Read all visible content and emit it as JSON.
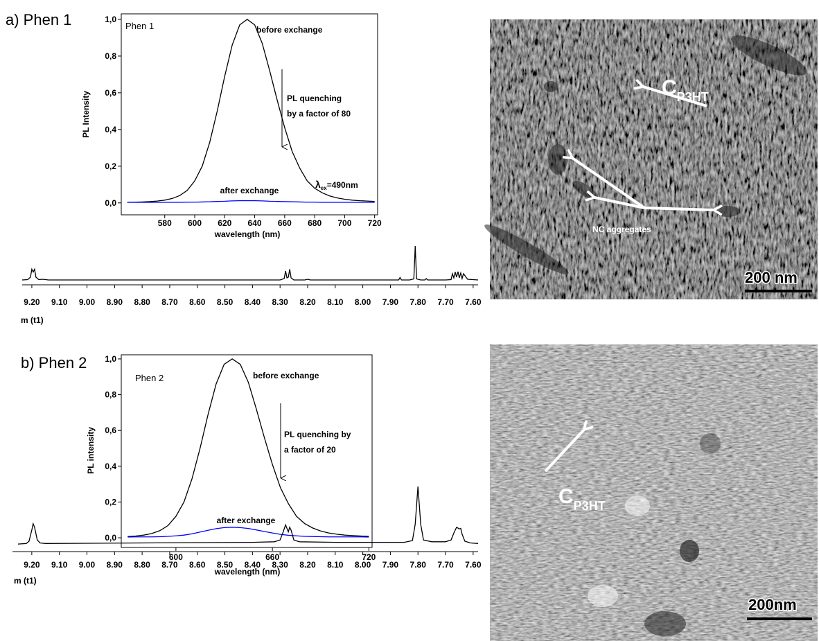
{
  "panels": [
    "a) Phen 1",
    "b) Phen 2"
  ],
  "chart_data": [
    {
      "type": "line",
      "inset_label": "Phen 1",
      "x_label": "wavelength (nm)",
      "y_label": "PL Intensity",
      "x": [
        555,
        560,
        565,
        570,
        575,
        580,
        585,
        590,
        595,
        600,
        605,
        610,
        615,
        620,
        625,
        630,
        635,
        640,
        645,
        650,
        655,
        660,
        665,
        670,
        675,
        680,
        685,
        690,
        695,
        700,
        705,
        710,
        715,
        720
      ],
      "series": [
        {
          "name": "before exchange",
          "color": "#000000",
          "values": [
            0.003,
            0.004,
            0.005,
            0.007,
            0.01,
            0.015,
            0.024,
            0.04,
            0.068,
            0.12,
            0.2,
            0.33,
            0.5,
            0.69,
            0.86,
            0.97,
            1.0,
            0.97,
            0.87,
            0.72,
            0.56,
            0.41,
            0.28,
            0.19,
            0.12,
            0.08,
            0.055,
            0.038,
            0.027,
            0.02,
            0.015,
            0.012,
            0.01,
            0.008
          ]
        },
        {
          "name": "after exchange",
          "color": "#0000ff",
          "values": [
            0.003,
            0.003,
            0.003,
            0.003,
            0.003,
            0.003,
            0.003,
            0.003,
            0.004,
            0.004,
            0.005,
            0.006,
            0.008,
            0.009,
            0.011,
            0.012,
            0.012,
            0.012,
            0.011,
            0.009,
            0.008,
            0.007,
            0.006,
            0.005,
            0.004,
            0.004,
            0.003,
            0.003,
            0.003,
            0.003,
            0.003,
            0.003,
            0.003,
            0.003
          ]
        }
      ],
      "xlim": [
        551,
        722
      ],
      "xticks": [
        580,
        600,
        620,
        640,
        660,
        680,
        700,
        720
      ],
      "ylim": [
        -0.065,
        1.03
      ],
      "yticks": [
        {
          "value": 0,
          "label": "0,0"
        },
        {
          "value": 0.2,
          "label": "0,2"
        },
        {
          "value": 0.4,
          "label": "0,4"
        },
        {
          "value": 0.6,
          "label": "0,6"
        },
        {
          "value": 0.8,
          "label": "0,8"
        },
        {
          "value": 1,
          "label": "1,0"
        }
      ],
      "annotations": [
        {
          "lines": [
            "PL quenching",
            "by a factor of 80"
          ]
        },
        {
          "text": "λ",
          "subscript": "ex",
          "suffix": "=490nm"
        }
      ]
    },
    {
      "type": "line",
      "x_label": "m (t1)",
      "x": [
        9.235,
        9.215,
        9.205,
        9.2,
        9.195,
        9.19,
        9.185,
        9.175,
        9.16,
        9.15,
        9.14,
        9.1,
        8.5,
        8.3,
        8.285,
        8.28,
        8.275,
        8.27,
        8.265,
        8.26,
        8.25,
        8.21,
        8.2,
        8.19,
        8.0,
        7.87,
        7.865,
        7.86,
        7.83,
        7.815,
        7.81,
        7.805,
        7.79,
        7.775,
        7.77,
        7.765,
        7.7,
        7.68,
        7.675,
        7.67,
        7.665,
        7.66,
        7.655,
        7.65,
        7.645,
        7.64,
        7.635,
        7.62,
        7.582
      ],
      "series": [
        {
          "color": "#000000",
          "values": [
            0.02,
            0.03,
            0.1,
            0.33,
            0.25,
            0.33,
            0.1,
            0.03,
            0.04,
            0.03,
            0.02,
            0.02,
            0.02,
            0.02,
            0.06,
            0.28,
            0.08,
            0.1,
            0.33,
            0.08,
            0.02,
            0.02,
            0.04,
            0.02,
            0.02,
            0.02,
            0.09,
            0.02,
            0.02,
            0.05,
            1.0,
            0.05,
            0.02,
            0.02,
            0.06,
            0.02,
            0.02,
            0.03,
            0.2,
            0.08,
            0.25,
            0.1,
            0.26,
            0.08,
            0.22,
            0.06,
            0.2,
            0.04,
            0.02
          ]
        }
      ],
      "xlim": [
        9.235,
        7.582
      ],
      "xticks": [
        {
          "value": 9.2,
          "label": "9.20"
        },
        {
          "value": 9.1,
          "label": "9.10"
        },
        {
          "value": 9.0,
          "label": "9.00"
        },
        {
          "value": 8.9,
          "label": "8.90"
        },
        {
          "value": 8.8,
          "label": "8.80"
        },
        {
          "value": 8.7,
          "label": "8.70"
        },
        {
          "value": 8.6,
          "label": "8.60"
        },
        {
          "value": 8.5,
          "label": "8.50"
        },
        {
          "value": 8.4,
          "label": "8.40"
        },
        {
          "value": 8.3,
          "label": "8.30"
        },
        {
          "value": 8.2,
          "label": "8.20"
        },
        {
          "value": 8.1,
          "label": "8.10"
        },
        {
          "value": 8.0,
          "label": "8.00"
        },
        {
          "value": 7.9,
          "label": "7.90"
        },
        {
          "value": 7.8,
          "label": "7.80"
        },
        {
          "value": 7.7,
          "label": "7.70"
        },
        {
          "value": 7.6,
          "label": "7.60"
        }
      ]
    },
    {
      "type": "line",
      "inset_label": "Phen 2",
      "x_label": "wavelength (nm)",
      "y_label": "PL intensity",
      "x": [
        570,
        575,
        580,
        585,
        590,
        595,
        600,
        605,
        610,
        615,
        620,
        625,
        630,
        635,
        640,
        645,
        650,
        655,
        660,
        665,
        670,
        675,
        680,
        685,
        690,
        695,
        700,
        705,
        710,
        715,
        720
      ],
      "series": [
        {
          "name": "before exchange",
          "color": "#000000",
          "values": [
            0.007,
            0.01,
            0.015,
            0.024,
            0.04,
            0.068,
            0.12,
            0.2,
            0.33,
            0.5,
            0.69,
            0.86,
            0.97,
            1.0,
            0.97,
            0.87,
            0.72,
            0.56,
            0.41,
            0.28,
            0.19,
            0.12,
            0.08,
            0.055,
            0.038,
            0.027,
            0.02,
            0.015,
            0.012,
            0.01,
            0.008
          ]
        },
        {
          "name": "after exchange",
          "color": "#0000ff",
          "values": [
            0.004,
            0.005,
            0.005,
            0.005,
            0.006,
            0.008,
            0.011,
            0.015,
            0.022,
            0.032,
            0.042,
            0.051,
            0.057,
            0.059,
            0.057,
            0.052,
            0.044,
            0.035,
            0.027,
            0.019,
            0.014,
            0.011,
            0.008,
            0.007,
            0.006,
            0.005,
            0.005,
            0.005,
            0.005,
            0.005,
            0.004
          ]
        }
      ],
      "xlim": [
        566,
        722
      ],
      "xticks": [
        600,
        660,
        720
      ],
      "ylim": [
        -0.054,
        1.023
      ],
      "yticks": [
        {
          "value": 0,
          "label": "0,0"
        },
        {
          "value": 0.2,
          "label": "0,2"
        },
        {
          "value": 0.4,
          "label": "0,4"
        },
        {
          "value": 0.6,
          "label": "0,6"
        },
        {
          "value": 0.8,
          "label": "0,8"
        },
        {
          "value": 1,
          "label": "1,0"
        }
      ],
      "annotations": [
        {
          "lines": [
            "PL quenching by",
            "a factor of 20"
          ]
        }
      ]
    },
    {
      "type": "line",
      "x_label": "m (t1)",
      "x": [
        9.25,
        9.22,
        9.21,
        9.2,
        9.195,
        9.19,
        9.18,
        9.17,
        9.15,
        8.8,
        8.4,
        8.32,
        8.3,
        8.29,
        8.28,
        8.27,
        8.265,
        8.26,
        8.25,
        8.23,
        8.1,
        7.85,
        7.82,
        7.81,
        7.8,
        7.79,
        7.78,
        7.75,
        7.7,
        7.68,
        7.67,
        7.66,
        7.65,
        7.645,
        7.64,
        7.63,
        7.61,
        7.582
      ],
      "series": [
        {
          "color": "#000000",
          "values": [
            0.01,
            0.02,
            0.06,
            0.25,
            0.36,
            0.3,
            0.08,
            0.03,
            0.02,
            0.03,
            0.04,
            0.05,
            0.08,
            0.2,
            0.34,
            0.22,
            0.3,
            0.25,
            0.08,
            0.05,
            0.04,
            0.04,
            0.07,
            0.35,
            1.0,
            0.35,
            0.08,
            0.05,
            0.05,
            0.08,
            0.2,
            0.3,
            0.27,
            0.28,
            0.18,
            0.06,
            0.03,
            0.02
          ]
        }
      ],
      "xlim": [
        9.27,
        7.582
      ],
      "xticks": [
        {
          "value": 9.2,
          "label": "9.20"
        },
        {
          "value": 9.1,
          "label": "9.10"
        },
        {
          "value": 9.0,
          "label": "9.00"
        },
        {
          "value": 8.9,
          "label": "8.90"
        },
        {
          "value": 8.8,
          "label": "8.80"
        },
        {
          "value": 8.7,
          "label": "8.70"
        },
        {
          "value": 8.6,
          "label": "8.60"
        },
        {
          "value": 8.5,
          "label": "8.50"
        },
        {
          "value": 8.4,
          "label": "8.40"
        },
        {
          "value": 8.3,
          "label": "8.30"
        },
        {
          "value": 8.2,
          "label": "8.20"
        },
        {
          "value": 8.1,
          "label": "8.10"
        },
        {
          "value": 8.0,
          "label": "8.00"
        },
        {
          "value": 7.9,
          "label": "7.90"
        },
        {
          "value": 7.8,
          "label": "7.80"
        },
        {
          "value": 7.7,
          "label": "7.70"
        },
        {
          "value": 7.6,
          "label": "7.60"
        }
      ]
    }
  ],
  "images": [
    {
      "annotations": [
        {
          "text": "C",
          "subscript": "P3HT"
        },
        {
          "text": "NC aggregates"
        }
      ],
      "scale_bar": "200 nm"
    },
    {
      "annotations": [
        {
          "text": "C",
          "subscript": "P3HT"
        }
      ],
      "scale_bar": "200nm"
    }
  ]
}
